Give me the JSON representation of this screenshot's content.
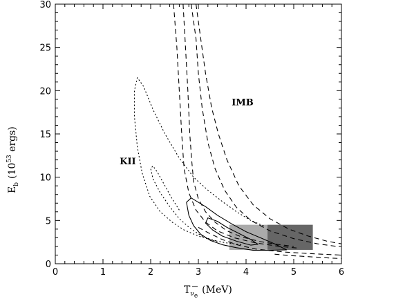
{
  "chart_data": {
    "type": "contour",
    "xlabel": {
      "main": "T",
      "subscript": "ν",
      "subsubscript": "e",
      "bar": true,
      "units": "(MeV)"
    },
    "ylabel": {
      "main": "E",
      "subscript": "b",
      "units_prefix": "(10",
      "superscript": "53",
      "units_suffix": " ergs)"
    },
    "xlim": [
      0,
      6
    ],
    "ylim": [
      0,
      30
    ],
    "xticks": [
      0,
      1,
      2,
      3,
      4,
      5,
      6
    ],
    "yticks": [
      0,
      5,
      10,
      15,
      20,
      25,
      30
    ],
    "xtick_labels": [
      "0",
      "1",
      "2",
      "3",
      "4",
      "5",
      "6"
    ],
    "ytick_labels": [
      "0",
      "5",
      "10",
      "15",
      "20",
      "25",
      "30"
    ],
    "annotations": [
      {
        "text": "IMB",
        "x": 3.7,
        "y": 18.3
      },
      {
        "text": "KII",
        "x": 1.35,
        "y": 11.5
      }
    ],
    "rectangles": [
      {
        "name": "light-box",
        "x0": 3.65,
        "x1": 4.45,
        "y0": 1.6,
        "y1": 4.5,
        "color": "#aaaaaa"
      },
      {
        "name": "dark-box",
        "x0": 4.45,
        "x1": 5.4,
        "y0": 1.6,
        "y1": 4.5,
        "color": "#666666"
      }
    ],
    "series": [
      {
        "group": "KII",
        "style": "dotted",
        "points": [
          [
            2.6,
            6.2
          ],
          [
            2.45,
            7.5
          ],
          [
            2.3,
            9.0
          ],
          [
            2.15,
            10.5
          ],
          [
            2.05,
            11.3
          ],
          [
            2.0,
            11.0
          ],
          [
            2.05,
            9.8
          ],
          [
            2.2,
            8.2
          ],
          [
            2.4,
            6.6
          ],
          [
            2.6,
            5.2
          ],
          [
            2.85,
            4.0
          ],
          [
            3.1,
            3.1
          ],
          [
            3.4,
            2.6
          ]
        ]
      },
      {
        "group": "KII",
        "style": "dotted",
        "points": [
          [
            3.9,
            2.2
          ],
          [
            3.6,
            2.4
          ],
          [
            3.3,
            2.7
          ],
          [
            3.0,
            3.2
          ],
          [
            2.7,
            3.9
          ],
          [
            2.45,
            4.8
          ],
          [
            2.2,
            6.0
          ],
          [
            1.98,
            7.8
          ],
          [
            1.82,
            10.5
          ],
          [
            1.72,
            13.5
          ],
          [
            1.66,
            17.0
          ],
          [
            1.66,
            20.0
          ],
          [
            1.72,
            21.5
          ],
          [
            1.85,
            20.5
          ],
          [
            2.05,
            17.8
          ],
          [
            2.3,
            15.0
          ],
          [
            2.6,
            12.2
          ],
          [
            2.9,
            10.0
          ],
          [
            3.2,
            8.5
          ],
          [
            3.5,
            7.2
          ],
          [
            3.8,
            6.0
          ],
          [
            4.1,
            5.0
          ],
          [
            4.4,
            4.3
          ]
        ]
      },
      {
        "group": "IMB",
        "style": "dashed",
        "points": [
          [
            2.68,
            30.0
          ],
          [
            2.73,
            25.0
          ],
          [
            2.78,
            20.0
          ],
          [
            2.82,
            15.0
          ],
          [
            2.86,
            12.0
          ],
          [
            2.9,
            9.5
          ],
          [
            3.0,
            7.5
          ],
          [
            3.15,
            6.0
          ],
          [
            3.35,
            4.8
          ],
          [
            3.6,
            3.8
          ],
          [
            3.9,
            3.1
          ],
          [
            4.3,
            2.55
          ],
          [
            4.7,
            2.2
          ],
          [
            5.0,
            2.0
          ]
        ]
      },
      {
        "group": "IMB",
        "style": "dashed",
        "points": [
          [
            2.48,
            30.0
          ],
          [
            2.55,
            25.0
          ],
          [
            2.6,
            20.0
          ],
          [
            2.65,
            15.0
          ],
          [
            2.7,
            11.0
          ],
          [
            2.8,
            8.2
          ],
          [
            2.95,
            6.2
          ],
          [
            3.15,
            4.8
          ],
          [
            3.4,
            3.8
          ],
          [
            3.75,
            3.0
          ],
          [
            4.2,
            2.4
          ],
          [
            4.7,
            2.0
          ],
          [
            5.1,
            1.8
          ]
        ]
      },
      {
        "group": "IMB",
        "style": "dashed",
        "points": [
          [
            2.85,
            30.0
          ],
          [
            2.95,
            26.0
          ],
          [
            3.0,
            22.0
          ],
          [
            3.08,
            18.0
          ],
          [
            3.2,
            14.0
          ],
          [
            3.35,
            11.0
          ],
          [
            3.55,
            8.5
          ],
          [
            3.8,
            6.5
          ],
          [
            4.1,
            5.0
          ],
          [
            4.5,
            3.8
          ],
          [
            5.0,
            2.9
          ],
          [
            5.5,
            2.3
          ],
          [
            5.9,
            2.0
          ]
        ]
      },
      {
        "group": "IMB",
        "style": "dashed",
        "points": [
          [
            2.95,
            30.0
          ],
          [
            3.05,
            26.0
          ],
          [
            3.15,
            22.0
          ],
          [
            3.28,
            18.0
          ],
          [
            3.42,
            15.0
          ],
          [
            3.6,
            12.0
          ],
          [
            3.85,
            9.0
          ],
          [
            4.15,
            6.8
          ],
          [
            4.5,
            5.2
          ],
          [
            4.9,
            4.0
          ],
          [
            5.3,
            3.2
          ],
          [
            5.7,
            2.6
          ],
          [
            6.0,
            2.3
          ]
        ]
      },
      {
        "group": "IMB",
        "style": "dashed",
        "points": [
          [
            4.6,
            1.1
          ],
          [
            4.9,
            0.95
          ],
          [
            5.2,
            0.85
          ],
          [
            5.5,
            0.75
          ],
          [
            5.8,
            0.65
          ],
          [
            6.0,
            0.6
          ]
        ]
      },
      {
        "group": "IMB",
        "style": "dashed",
        "points": [
          [
            3.0,
            4.2
          ],
          [
            3.2,
            3.6
          ],
          [
            3.5,
            2.8
          ],
          [
            3.8,
            2.2
          ],
          [
            4.2,
            1.7
          ],
          [
            4.8,
            1.35
          ],
          [
            5.4,
            1.15
          ],
          [
            6.0,
            1.0
          ]
        ]
      },
      {
        "group": "combined",
        "style": "solid",
        "closed": true,
        "points": [
          [
            2.85,
            7.6
          ],
          [
            2.75,
            7.1
          ],
          [
            2.8,
            5.6
          ],
          [
            2.9,
            4.4
          ],
          [
            3.05,
            3.4
          ],
          [
            3.25,
            2.7
          ],
          [
            3.5,
            2.2
          ],
          [
            3.8,
            1.85
          ],
          [
            4.15,
            1.55
          ],
          [
            4.5,
            1.55
          ],
          [
            4.85,
            1.6
          ],
          [
            4.6,
            2.3
          ],
          [
            4.3,
            3.0
          ],
          [
            4.0,
            3.7
          ],
          [
            3.7,
            4.6
          ],
          [
            3.4,
            5.6
          ],
          [
            3.15,
            6.6
          ]
        ]
      },
      {
        "group": "combined",
        "style": "solid",
        "closed": true,
        "points": [
          [
            3.2,
            5.3
          ],
          [
            3.15,
            4.7
          ],
          [
            3.3,
            3.9
          ],
          [
            3.5,
            3.2
          ],
          [
            3.8,
            2.6
          ],
          [
            4.1,
            2.15
          ],
          [
            4.25,
            2.25
          ],
          [
            4.1,
            2.8
          ],
          [
            3.85,
            3.5
          ],
          [
            3.6,
            4.2
          ],
          [
            3.4,
            4.9
          ]
        ]
      }
    ]
  }
}
